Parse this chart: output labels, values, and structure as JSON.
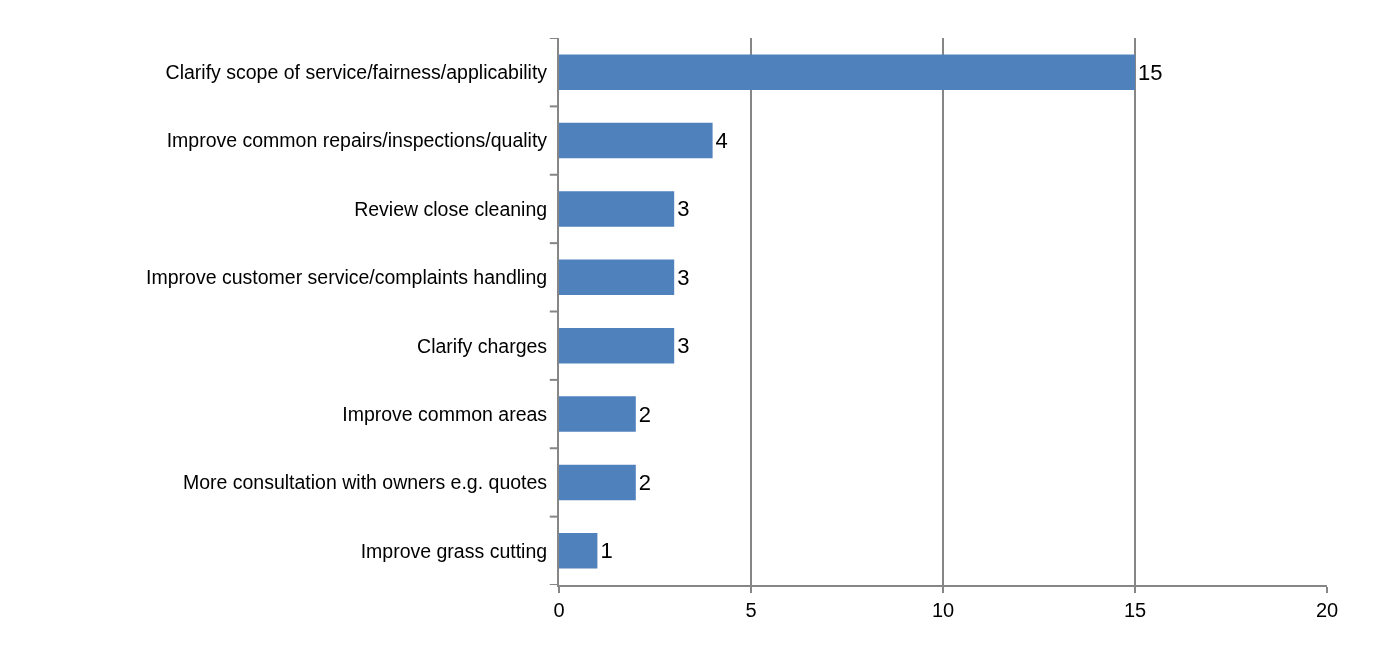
{
  "chart_data": {
    "type": "bar",
    "orientation": "horizontal",
    "categories": [
      "Clarify scope of service/fairness/applicability",
      "Improve common repairs/inspections/quality",
      "Review close cleaning",
      "Improve customer service/complaints handling",
      "Clarify charges",
      "Improve common areas",
      "More consultation with owners e.g. quotes",
      "Improve grass cutting"
    ],
    "values": [
      15,
      4,
      3,
      3,
      3,
      2,
      2,
      1
    ],
    "color": "#4f81bd",
    "xlim": [
      0,
      20
    ],
    "xticks": [
      0,
      5,
      10,
      15,
      20
    ],
    "grid": "x",
    "data_labels": true
  }
}
